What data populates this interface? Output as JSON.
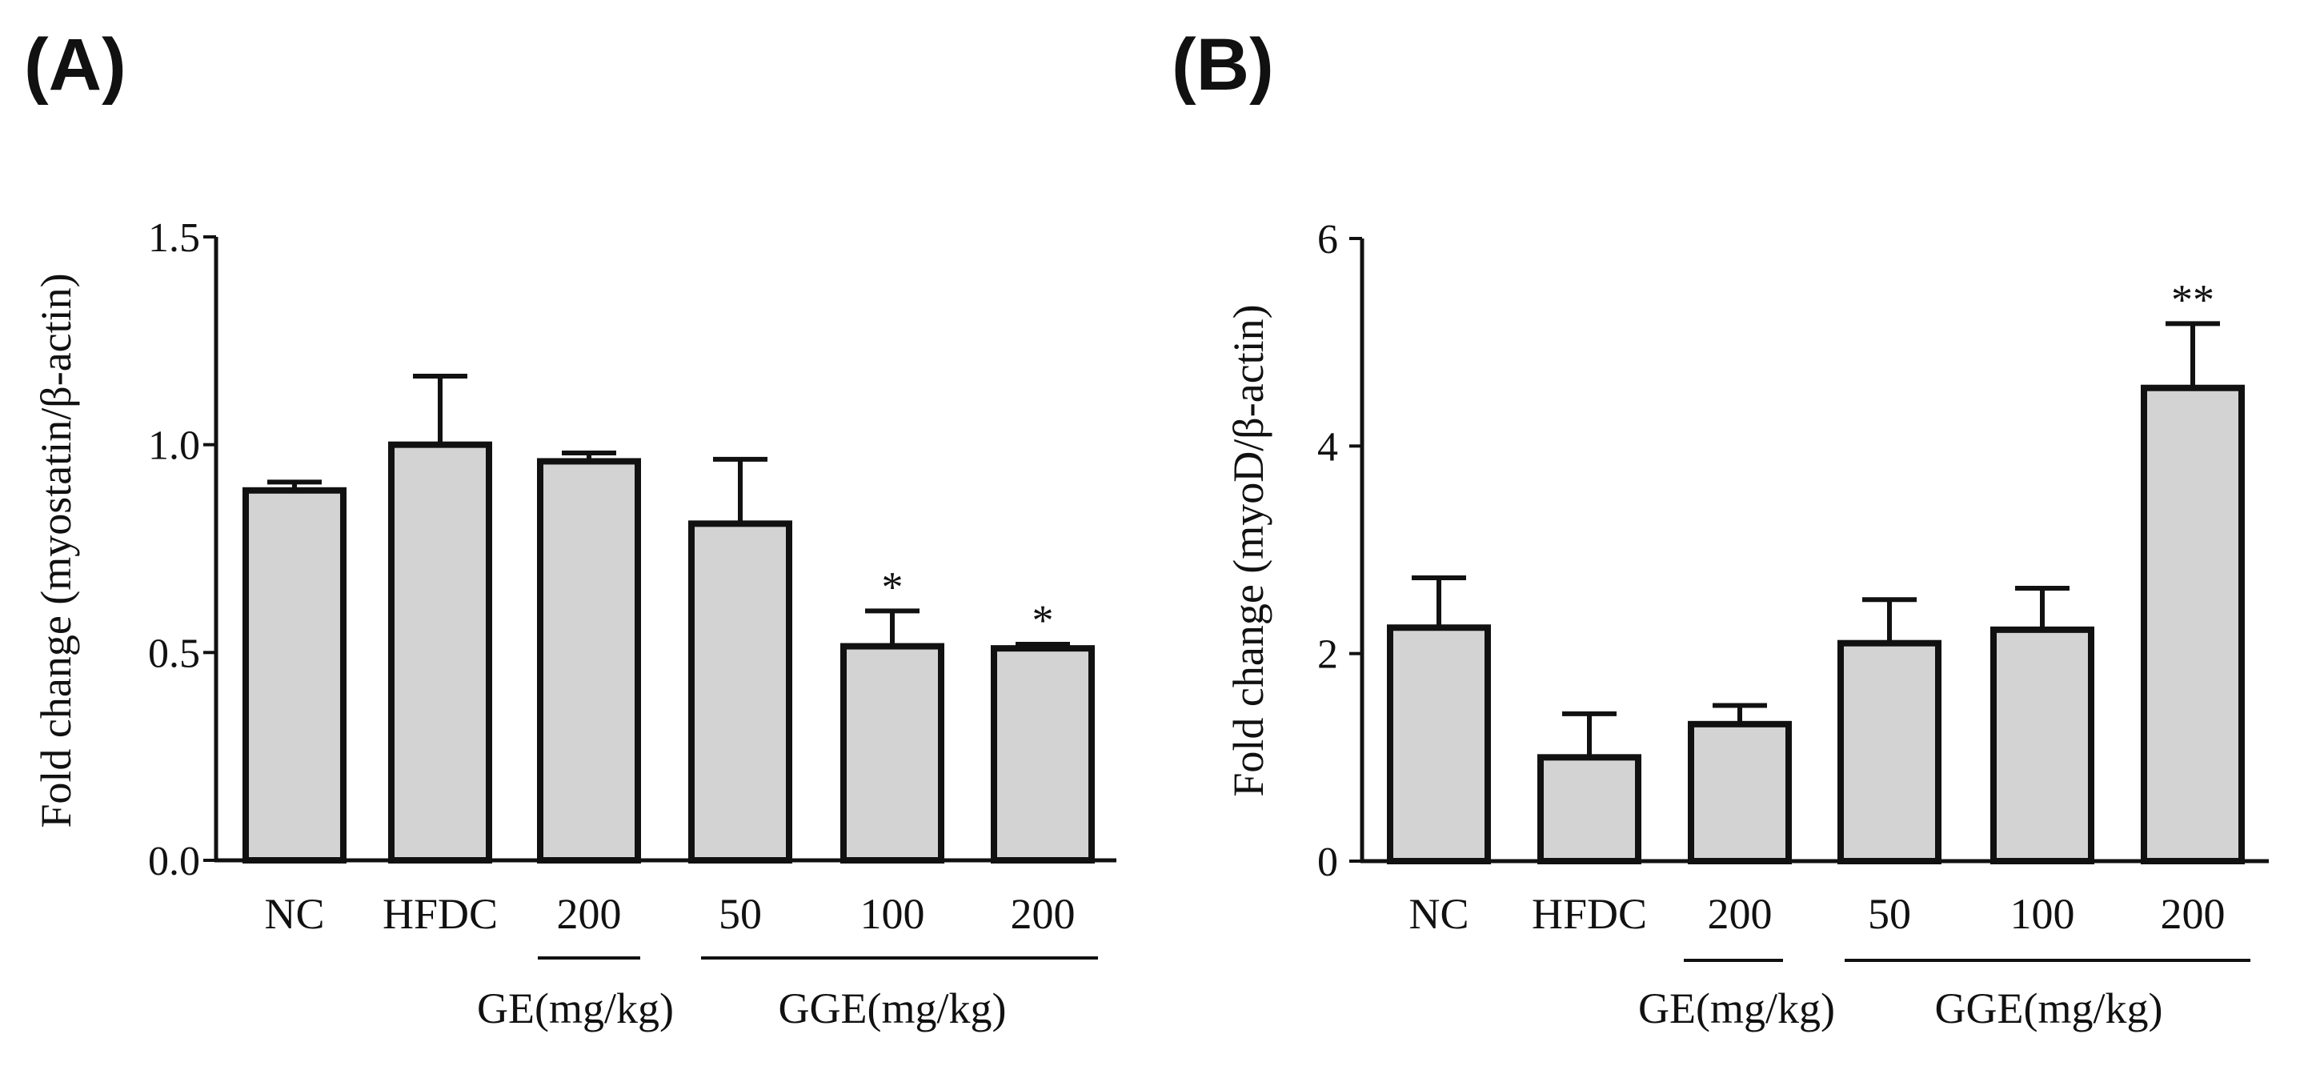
{
  "colors": {
    "bar_fill": "#d3d3d3",
    "ink": "#111111",
    "background": "#ffffff"
  },
  "chart_data": [
    {
      "type": "bar",
      "panel_label": "(A)",
      "ylabel": "Fold change (myostatin/β-actin)",
      "xlabel": "",
      "ylim": [
        0,
        1.5
      ],
      "yticks": [
        0.0,
        0.5,
        1.0,
        1.5
      ],
      "ytick_labels": [
        "0.0",
        "0.5",
        "1.0",
        "1.5"
      ],
      "categories": [
        "NC",
        "HFDC",
        "200",
        "50",
        "100",
        "200"
      ],
      "values": [
        0.89,
        1.0,
        0.96,
        0.81,
        0.515,
        0.51
      ],
      "errors": [
        0.02,
        0.165,
        0.02,
        0.155,
        0.085,
        0.01
      ],
      "significance": [
        "",
        "",
        "",
        "",
        "*",
        "*"
      ],
      "groups": [
        {
          "label": "GE(mg/kg)",
          "start": 2,
          "end": 2
        },
        {
          "label": "GGE(mg/kg)",
          "start": 3,
          "end": 5
        }
      ],
      "grid": false,
      "legend": "none"
    },
    {
      "type": "bar",
      "panel_label": "(B)",
      "ylabel": "Fold change (myoD/β-actin)",
      "xlabel": "",
      "ylim": [
        0,
        6
      ],
      "yticks": [
        0,
        2,
        4,
        6
      ],
      "ytick_labels": [
        "0",
        "2",
        "4",
        "6"
      ],
      "categories": [
        "NC",
        "HFDC",
        "200",
        "50",
        "100",
        "200"
      ],
      "values": [
        2.25,
        1.0,
        1.32,
        2.1,
        2.23,
        4.56
      ],
      "errors": [
        0.48,
        0.42,
        0.18,
        0.42,
        0.4,
        0.62
      ],
      "significance": [
        "",
        "",
        "",
        "",
        "",
        "**"
      ],
      "groups": [
        {
          "label": "GE(mg/kg)",
          "start": 2,
          "end": 2
        },
        {
          "label": "GGE(mg/kg)",
          "start": 3,
          "end": 5
        }
      ],
      "grid": false,
      "legend": "none"
    }
  ]
}
